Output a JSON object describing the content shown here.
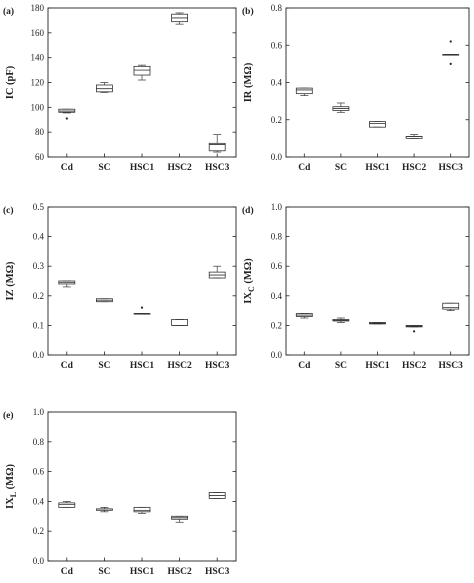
{
  "chart_data": [
    {
      "panel": "(a)",
      "type": "box",
      "ylabel": "IC (pF)",
      "ylabel_main": "IC",
      "ylabel_sub": "",
      "ylabel_unit": "(pF)",
      "ylim": [
        60,
        180
      ],
      "yticks": [
        "60",
        "80",
        "100",
        "120",
        "140",
        "160",
        "180"
      ],
      "categories": [
        "Cd",
        "SC",
        "HSC1",
        "HSC2",
        "HSC3"
      ],
      "boxes": [
        {
          "min": 95.5,
          "q1": 96,
          "median": 97,
          "q3": 98.5,
          "max": 98.5,
          "outliers": [
            91
          ]
        },
        {
          "min": 112,
          "q1": 112.5,
          "median": 115,
          "q3": 118,
          "max": 120,
          "outliers": []
        },
        {
          "min": 122,
          "q1": 126,
          "median": 130,
          "q3": 133,
          "max": 134,
          "outliers": []
        },
        {
          "min": 167,
          "q1": 169,
          "median": 172,
          "q3": 175,
          "max": 176,
          "outliers": []
        },
        {
          "min": 64,
          "q1": 65,
          "median": 70,
          "q3": 71,
          "max": 78,
          "outliers": []
        }
      ]
    },
    {
      "panel": "(b)",
      "type": "box",
      "ylabel": "IR (MΩ)",
      "ylabel_main": "IR",
      "ylabel_sub": "",
      "ylabel_unit": "(MΩ)",
      "ylim": [
        0,
        0.8
      ],
      "yticks": [
        "0.0",
        "0.2",
        "0.4",
        "0.6",
        "0.8"
      ],
      "categories": [
        "Cd",
        "SC",
        "HSC1",
        "HSC2",
        "HSC3"
      ],
      "boxes": [
        {
          "min": 0.33,
          "q1": 0.34,
          "median": 0.36,
          "q3": 0.37,
          "max": 0.37,
          "outliers": []
        },
        {
          "min": 0.24,
          "q1": 0.25,
          "median": 0.26,
          "q3": 0.27,
          "max": 0.29,
          "outliers": []
        },
        {
          "min": 0.16,
          "q1": 0.16,
          "median": 0.18,
          "q3": 0.19,
          "max": 0.19,
          "outliers": []
        },
        {
          "min": 0.1,
          "q1": 0.1,
          "median": 0.11,
          "q3": 0.11,
          "max": 0.12,
          "outliers": []
        },
        {
          "min": 0.55,
          "q1": 0.55,
          "median": 0.55,
          "q3": 0.55,
          "max": 0.55,
          "outliers": [
            0.62,
            0.5
          ]
        }
      ]
    },
    {
      "panel": "(c)",
      "type": "box",
      "ylabel": "IZ (MΩ)",
      "ylabel_main": "IZ",
      "ylabel_sub": "",
      "ylabel_unit": "(MΩ)",
      "ylim": [
        0,
        0.5
      ],
      "yticks": [
        "0.0",
        "0.1",
        "0.2",
        "0.3",
        "0.4",
        "0.5"
      ],
      "categories": [
        "Cd",
        "SC",
        "HSC1",
        "HSC2",
        "HSC3"
      ],
      "boxes": [
        {
          "min": 0.23,
          "q1": 0.24,
          "median": 0.245,
          "q3": 0.25,
          "max": 0.25,
          "outliers": []
        },
        {
          "min": 0.18,
          "q1": 0.18,
          "median": 0.185,
          "q3": 0.19,
          "max": 0.19,
          "outliers": []
        },
        {
          "min": 0.14,
          "q1": 0.14,
          "median": 0.14,
          "q3": 0.14,
          "max": 0.14,
          "outliers": [
            0.16
          ]
        },
        {
          "min": 0.1,
          "q1": 0.1,
          "median": 0.1,
          "q3": 0.12,
          "max": 0.12,
          "outliers": []
        },
        {
          "min": 0.26,
          "q1": 0.26,
          "median": 0.27,
          "q3": 0.28,
          "max": 0.3,
          "outliers": []
        }
      ]
    },
    {
      "panel": "(d)",
      "type": "box",
      "ylabel": "IXC (MΩ)",
      "ylabel_main": "IX",
      "ylabel_sub": "C",
      "ylabel_unit": "(MΩ)",
      "ylim": [
        0,
        1.0
      ],
      "yticks": [
        "0.0",
        "0.2",
        "0.4",
        "0.6",
        "0.8",
        "1.0"
      ],
      "categories": [
        "Cd",
        "SC",
        "HSC1",
        "HSC2",
        "HSC3"
      ],
      "boxes": [
        {
          "min": 0.25,
          "q1": 0.26,
          "median": 0.27,
          "q3": 0.28,
          "max": 0.28,
          "outliers": []
        },
        {
          "min": 0.22,
          "q1": 0.23,
          "median": 0.235,
          "q3": 0.24,
          "max": 0.25,
          "outliers": []
        },
        {
          "min": 0.21,
          "q1": 0.21,
          "median": 0.215,
          "q3": 0.22,
          "max": 0.22,
          "outliers": []
        },
        {
          "min": 0.19,
          "q1": 0.19,
          "median": 0.195,
          "q3": 0.2,
          "max": 0.2,
          "outliers": [
            0.16
          ]
        },
        {
          "min": 0.3,
          "q1": 0.31,
          "median": 0.32,
          "q3": 0.35,
          "max": 0.35,
          "outliers": []
        }
      ]
    },
    {
      "panel": "(e)",
      "type": "box",
      "ylabel": "IXL (MΩ)",
      "ylabel_main": "IX",
      "ylabel_sub": "L",
      "ylabel_unit": "(MΩ)",
      "ylim": [
        0,
        1.0
      ],
      "yticks": [
        "0.0",
        "0.2",
        "0.4",
        "0.6",
        "0.8",
        "1.0"
      ],
      "categories": [
        "Cd",
        "SC",
        "HSC1",
        "HSC2",
        "HSC3"
      ],
      "boxes": [
        {
          "min": 0.36,
          "q1": 0.36,
          "median": 0.38,
          "q3": 0.39,
          "max": 0.4,
          "outliers": []
        },
        {
          "min": 0.33,
          "q1": 0.34,
          "median": 0.35,
          "q3": 0.35,
          "max": 0.36,
          "outliers": []
        },
        {
          "min": 0.32,
          "q1": 0.33,
          "median": 0.34,
          "q3": 0.36,
          "max": 0.36,
          "outliers": []
        },
        {
          "min": 0.26,
          "q1": 0.28,
          "median": 0.29,
          "q3": 0.3,
          "max": 0.3,
          "outliers": []
        },
        {
          "min": 0.42,
          "q1": 0.42,
          "median": 0.44,
          "q3": 0.46,
          "max": 0.46,
          "outliers": []
        }
      ]
    }
  ]
}
